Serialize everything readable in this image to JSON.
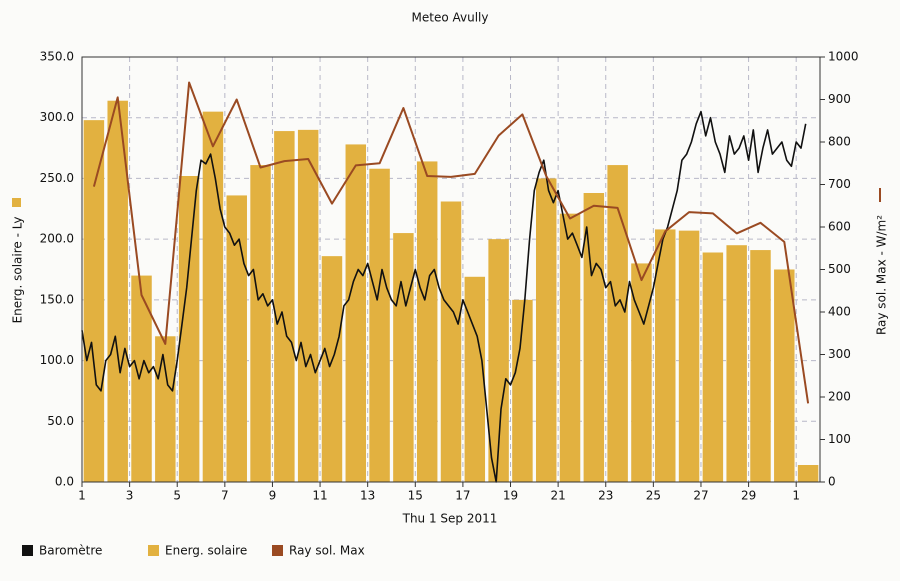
{
  "chart_data": {
    "type": "bar",
    "title": "Meteo  Avully",
    "xlabel": "Thu 1 Sep 2011",
    "ylabel": "Energ. solaire - Ly",
    "y2label": "Ray sol. Max - W/m²",
    "xlim": [
      1,
      32
    ],
    "xticks": [
      1,
      3,
      5,
      7,
      9,
      11,
      13,
      15,
      17,
      19,
      21,
      23,
      25,
      27,
      29,
      {
        "value": 31,
        "label": "1"
      }
    ],
    "ylim": [
      0,
      350
    ],
    "yticks": [
      {
        "value": 0,
        "label": "0.0"
      },
      {
        "value": 50,
        "label": "50.0"
      },
      {
        "value": 100,
        "label": "100.0"
      },
      {
        "value": 150,
        "label": "150.0"
      },
      {
        "value": 200,
        "label": "200.0"
      },
      {
        "value": 250,
        "label": "250.0"
      },
      {
        "value": 300,
        "label": "300.0"
      },
      {
        "value": 350,
        "label": "350.0"
      }
    ],
    "y2lim": [
      0,
      1000
    ],
    "y2ticks": [
      0,
      100,
      200,
      300,
      400,
      500,
      600,
      700,
      800,
      900,
      1000
    ],
    "grid": true,
    "series": [
      {
        "name": "Baromètre",
        "type": "line",
        "color": "#111111",
        "x": [
          1,
          1.2,
          1.4,
          1.6,
          1.8,
          2,
          2.2,
          2.4,
          2.6,
          2.8,
          3,
          3.2,
          3.4,
          3.6,
          3.8,
          4,
          4.2,
          4.4,
          4.6,
          4.8,
          5,
          5.2,
          5.4,
          5.6,
          5.8,
          6,
          6.2,
          6.4,
          6.6,
          6.8,
          7,
          7.2,
          7.4,
          7.6,
          7.8,
          8,
          8.2,
          8.4,
          8.6,
          8.8,
          9,
          9.2,
          9.4,
          9.6,
          9.8,
          10,
          10.2,
          10.4,
          10.6,
          10.8,
          11,
          11.2,
          11.4,
          11.6,
          11.8,
          12,
          12.2,
          12.4,
          12.6,
          12.8,
          13,
          13.2,
          13.4,
          13.6,
          13.8,
          14,
          14.2,
          14.4,
          14.6,
          14.8,
          15,
          15.2,
          15.4,
          15.6,
          15.8,
          16,
          16.2,
          16.4,
          16.6,
          16.8,
          17,
          17.2,
          17.4,
          17.6,
          17.8,
          18,
          18.2,
          18.4,
          18.6,
          18.8,
          19,
          19.2,
          19.4,
          19.6,
          19.8,
          20,
          20.2,
          20.4,
          20.6,
          20.8,
          21,
          21.2,
          21.4,
          21.6,
          21.8,
          22,
          22.2,
          22.4,
          22.6,
          22.8,
          23,
          23.2,
          23.4,
          23.6,
          23.8,
          24,
          24.2,
          24.4,
          24.6,
          24.8,
          25,
          25.2,
          25.4,
          25.6,
          25.8,
          26,
          26.2,
          26.4,
          26.6,
          26.8,
          27,
          27.2,
          27.4,
          27.6,
          27.8,
          28,
          28.2,
          28.4,
          28.6,
          28.8,
          29,
          29.2,
          29.4,
          29.6,
          29.8,
          30,
          30.2,
          30.4,
          30.6,
          30.8,
          31,
          31.2,
          31.4
        ],
        "values": [
          125,
          100,
          115,
          80,
          75,
          100,
          105,
          120,
          90,
          110,
          95,
          100,
          85,
          100,
          90,
          95,
          85,
          105,
          80,
          75,
          100,
          130,
          160,
          200,
          240,
          265,
          262,
          270,
          250,
          225,
          210,
          205,
          195,
          200,
          180,
          170,
          175,
          150,
          155,
          145,
          150,
          130,
          140,
          120,
          115,
          100,
          115,
          95,
          105,
          90,
          100,
          110,
          95,
          105,
          120,
          145,
          150,
          165,
          175,
          170,
          180,
          165,
          150,
          175,
          160,
          150,
          145,
          165,
          145,
          160,
          175,
          160,
          150,
          170,
          175,
          160,
          150,
          145,
          140,
          130,
          150,
          140,
          130,
          120,
          100,
          60,
          20,
          0,
          60,
          85,
          80,
          90,
          110,
          150,
          200,
          240,
          255,
          265,
          240,
          230,
          240,
          220,
          200,
          205,
          195,
          185,
          210,
          170,
          180,
          175,
          160,
          165,
          145,
          150,
          140,
          165,
          150,
          140,
          130,
          145,
          160,
          180,
          200,
          210,
          225,
          240,
          265,
          270,
          280,
          295,
          305,
          285,
          300,
          280,
          270,
          255,
          285,
          270,
          275,
          285,
          265,
          290,
          255,
          275,
          290,
          270,
          275,
          280,
          265,
          260,
          280,
          275,
          295
        ]
      },
      {
        "name": "Energ. solaire",
        "type": "bar",
        "color": "#e2b140",
        "values": [
          298,
          314,
          170,
          120,
          252,
          305,
          236,
          261,
          289,
          290,
          186,
          278,
          258,
          205,
          264,
          231,
          169,
          200,
          150,
          250,
          221,
          238,
          261,
          180,
          208,
          207,
          189,
          195,
          191,
          175,
          14
        ]
      },
      {
        "name": "Ray sol. Max",
        "type": "line",
        "axis": "y2",
        "color": "#9a4a22",
        "values": [
          695,
          905,
          440,
          325,
          940,
          790,
          900,
          740,
          755,
          760,
          655,
          745,
          750,
          880,
          720,
          718,
          725,
          815,
          865,
          720,
          620,
          650,
          645,
          475,
          590,
          635,
          632,
          585,
          610,
          565,
          185
        ]
      }
    ]
  }
}
